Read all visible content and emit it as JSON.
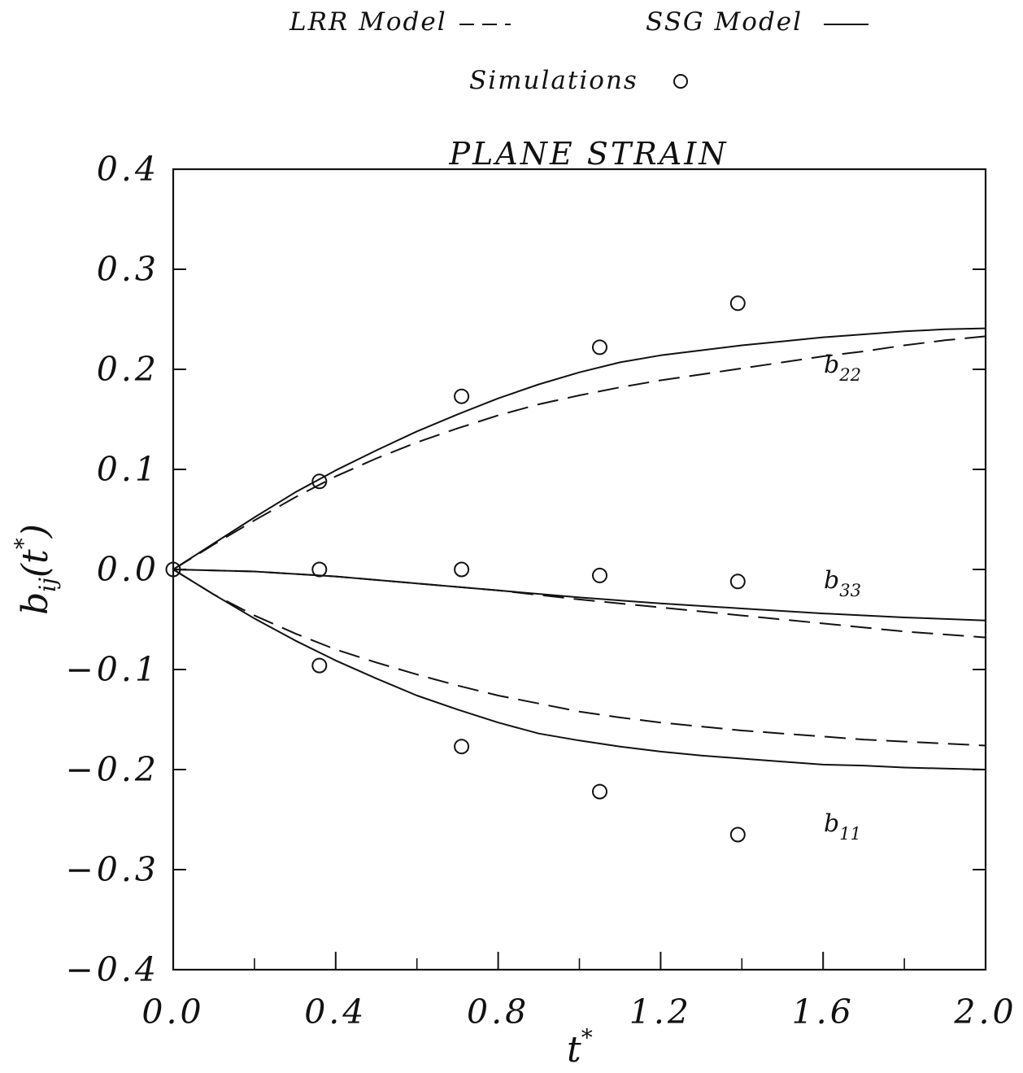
{
  "chart_data": {
    "type": "line",
    "title": "PLANE STRAIN",
    "xlabel": "t*",
    "ylabel": "b_ij(t*)",
    "xlim": [
      0.0,
      2.0
    ],
    "ylim": [
      -0.4,
      0.4
    ],
    "xticks": [
      "0.0",
      "0.4",
      "0.8",
      "1.2",
      "1.6",
      "2.0"
    ],
    "yticks": [
      "0.4",
      "0.3",
      "0.2",
      "0.1",
      "0.0",
      "-0.1",
      "-0.2",
      "-0.3",
      "-0.4"
    ],
    "x_minor_step": 0.2,
    "grid": false,
    "legend_position": "top-center",
    "legend": {
      "lrr": "LRR Model",
      "ssg": "SSG Model",
      "sim": "Simulations"
    },
    "annotations": {
      "b22": {
        "base": "b",
        "sub": "22"
      },
      "b33": {
        "base": "b",
        "sub": "33"
      },
      "b11": {
        "base": "b",
        "sub": "11"
      }
    },
    "series": [
      {
        "name": "SSG Model",
        "component": "b22",
        "style": "solid",
        "x": [
          0,
          0.1,
          0.2,
          0.3,
          0.4,
          0.5,
          0.6,
          0.7,
          0.8,
          0.9,
          1.0,
          1.1,
          1.2,
          1.3,
          1.4,
          1.5,
          1.6,
          1.7,
          1.8,
          1.9,
          2.0
        ],
        "y": [
          0,
          0.026,
          0.052,
          0.077,
          0.099,
          0.119,
          0.138,
          0.155,
          0.171,
          0.185,
          0.197,
          0.207,
          0.214,
          0.219,
          0.224,
          0.228,
          0.232,
          0.235,
          0.238,
          0.24,
          0.241
        ]
      },
      {
        "name": "LRR Model",
        "component": "b22",
        "style": "dashed",
        "x": [
          0,
          0.1,
          0.2,
          0.3,
          0.4,
          0.5,
          0.6,
          0.7,
          0.8,
          0.9,
          1.0,
          1.1,
          1.2,
          1.3,
          1.4,
          1.5,
          1.6,
          1.7,
          1.8,
          1.9,
          2.0
        ],
        "y": [
          0,
          0.025,
          0.049,
          0.072,
          0.093,
          0.111,
          0.127,
          0.141,
          0.154,
          0.165,
          0.174,
          0.182,
          0.189,
          0.195,
          0.201,
          0.207,
          0.213,
          0.218,
          0.224,
          0.229,
          0.233
        ]
      },
      {
        "name": "SSG Model",
        "component": "b33",
        "style": "solid",
        "x": [
          0,
          0.2,
          0.4,
          0.6,
          0.8,
          1.0,
          1.2,
          1.4,
          1.6,
          1.8,
          2.0
        ],
        "y": [
          0,
          -0.002,
          -0.007,
          -0.014,
          -0.021,
          -0.028,
          -0.034,
          -0.039,
          -0.044,
          -0.048,
          -0.051
        ]
      },
      {
        "name": "LRR Model",
        "component": "b33",
        "style": "dashed",
        "x": [
          0,
          0.2,
          0.4,
          0.6,
          0.8,
          1.0,
          1.2,
          1.4,
          1.6,
          1.8,
          2.0
        ],
        "y": [
          0,
          -0.002,
          -0.007,
          -0.014,
          -0.021,
          -0.03,
          -0.038,
          -0.046,
          -0.054,
          -0.062,
          -0.068
        ]
      },
      {
        "name": "SSG Model",
        "component": "b11",
        "style": "solid",
        "x": [
          0,
          0.1,
          0.2,
          0.3,
          0.4,
          0.5,
          0.6,
          0.7,
          0.8,
          0.9,
          1.0,
          1.1,
          1.2,
          1.3,
          1.4,
          1.5,
          1.6,
          1.7,
          1.8,
          1.9,
          2.0
        ],
        "y": [
          0,
          -0.025,
          -0.049,
          -0.071,
          -0.091,
          -0.109,
          -0.126,
          -0.14,
          -0.153,
          -0.164,
          -0.171,
          -0.177,
          -0.182,
          -0.186,
          -0.189,
          -0.192,
          -0.195,
          -0.196,
          -0.198,
          -0.199,
          -0.2
        ]
      },
      {
        "name": "LRR Model",
        "component": "b11",
        "style": "dashed",
        "x": [
          0,
          0.1,
          0.2,
          0.3,
          0.4,
          0.5,
          0.6,
          0.7,
          0.8,
          0.9,
          1.0,
          1.1,
          1.2,
          1.3,
          1.4,
          1.5,
          1.6,
          1.7,
          1.8,
          1.9,
          2.0
        ],
        "y": [
          0,
          -0.025,
          -0.046,
          -0.064,
          -0.08,
          -0.093,
          -0.105,
          -0.116,
          -0.126,
          -0.134,
          -0.142,
          -0.148,
          -0.153,
          -0.157,
          -0.161,
          -0.164,
          -0.167,
          -0.17,
          -0.172,
          -0.174,
          -0.176
        ]
      }
    ],
    "simulations": {
      "name": "Simulations",
      "x": [
        0.0,
        0.36,
        0.71,
        1.05,
        1.39,
        0.36,
        0.71,
        1.05,
        1.39,
        0.36,
        0.71,
        1.05,
        1.39
      ],
      "y": [
        0.0,
        0.088,
        0.173,
        0.222,
        0.266,
        0.0,
        0.0,
        -0.006,
        -0.012,
        -0.096,
        -0.177,
        -0.222,
        -0.265
      ]
    }
  }
}
